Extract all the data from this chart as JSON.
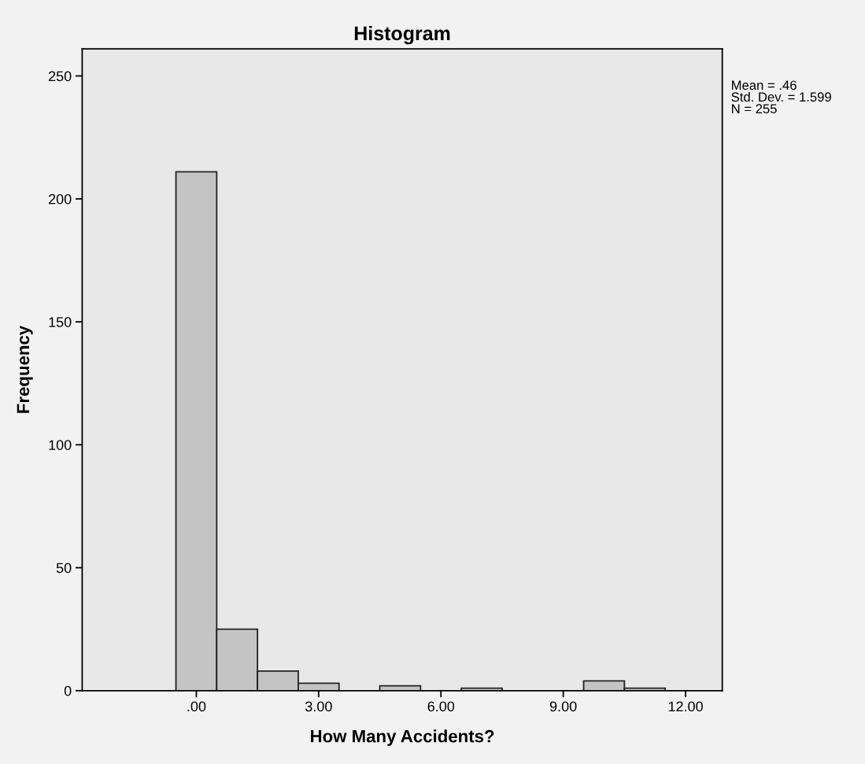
{
  "chart_data": {
    "type": "histogram",
    "title": "Histogram",
    "xlabel": "How Many Accidents?",
    "ylabel": "Frequency",
    "bins": [
      -0.5,
      0.5,
      1.5,
      2.5,
      3.5,
      4.5,
      5.5,
      6.5,
      7.5,
      8.5,
      9.5,
      10.5,
      11.5
    ],
    "values": [
      211,
      25,
      8,
      3,
      0,
      2,
      0,
      1,
      0,
      0,
      4,
      1
    ],
    "color": "#c4c4c4",
    "xlim": [
      -2.8,
      12.9
    ],
    "xticks": [
      {
        "value": 0,
        "label": ".00"
      },
      {
        "value": 3,
        "label": "3.00"
      },
      {
        "value": 6,
        "label": "6.00"
      },
      {
        "value": 9,
        "label": "9.00"
      },
      {
        "value": 12,
        "label": "12.00"
      }
    ],
    "ylim": [
      0,
      261
    ],
    "yticks": [
      0,
      50,
      100,
      150,
      200,
      250
    ],
    "annotations": [
      "Mean = .46\nStd. Dev. = 1.599\nN = 255"
    ],
    "grid": false,
    "legend": false
  }
}
